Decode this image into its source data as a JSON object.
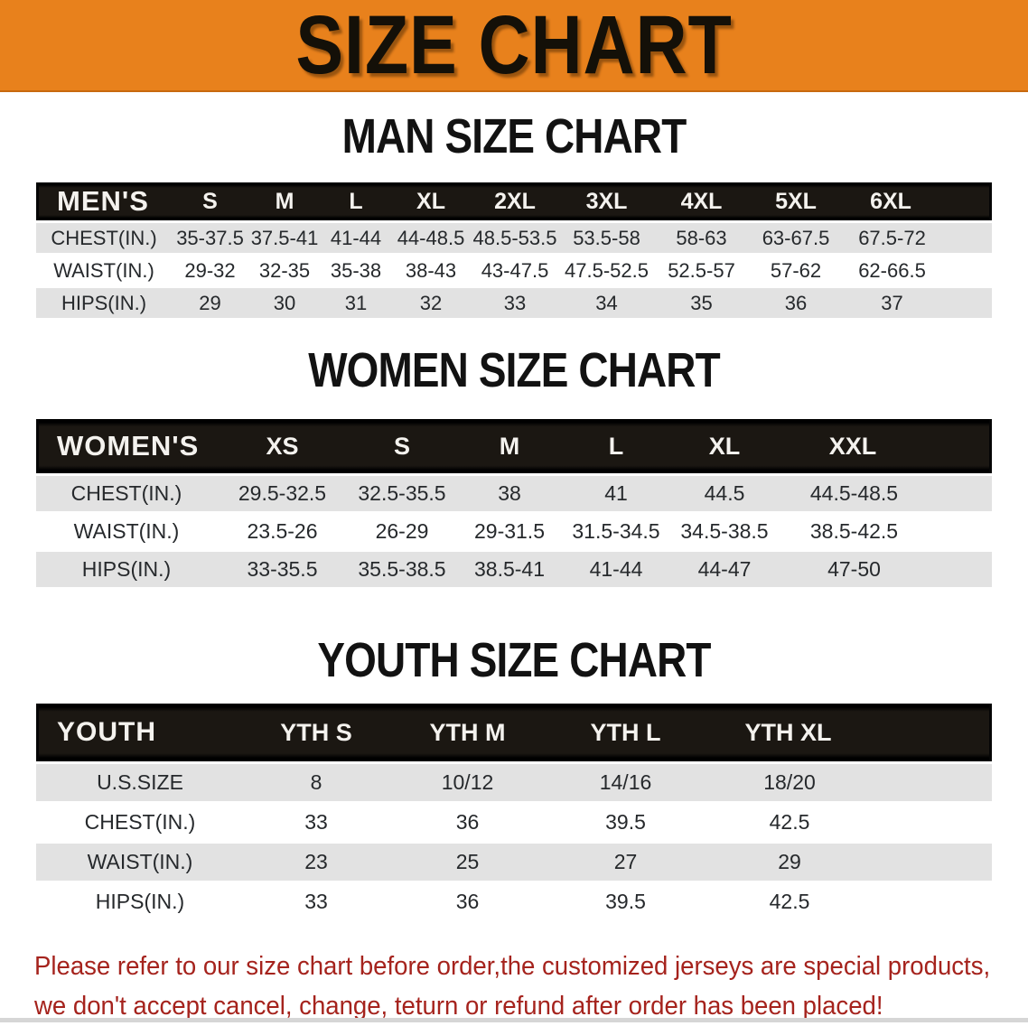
{
  "banner": {
    "title": "SIZE CHART",
    "bg_color": "#E8811C",
    "text_color": "#141008"
  },
  "sections": {
    "men": {
      "heading": "MAN SIZE CHART"
    },
    "women": {
      "heading": "WOMEN SIZE CHART"
    },
    "youth": {
      "heading": "YOUTH SIZE CHART"
    }
  },
  "tables": {
    "men": {
      "header_label": "MEN'S",
      "columns": [
        "S",
        "M",
        "L",
        "XL",
        "2XL",
        "3XL",
        "4XL",
        "5XL",
        "6XL"
      ],
      "rows": [
        {
          "label": "CHEST(IN.)",
          "values": [
            "35-37.5",
            "37.5-41",
            "41-44",
            "44-48.5",
            "48.5-53.5",
            "53.5-58",
            "58-63",
            "63-67.5",
            "67.5-72"
          ]
        },
        {
          "label": "WAIST(IN.)",
          "values": [
            "29-32",
            "32-35",
            "35-38",
            "38-43",
            "43-47.5",
            "47.5-52.5",
            "52.5-57",
            "57-62",
            "62-66.5"
          ]
        },
        {
          "label": "HIPS(IN.)",
          "values": [
            "29",
            "30",
            "31",
            "32",
            "33",
            "34",
            "35",
            "36",
            "37"
          ]
        }
      ]
    },
    "women": {
      "header_label": "WOMEN'S",
      "columns": [
        "XS",
        "S",
        "M",
        "L",
        "XL",
        "XXL"
      ],
      "rows": [
        {
          "label": "CHEST(IN.)",
          "values": [
            "29.5-32.5",
            "32.5-35.5",
            "38",
            "41",
            "44.5",
            "44.5-48.5"
          ]
        },
        {
          "label": "WAIST(IN.)",
          "values": [
            "23.5-26",
            "26-29",
            "29-31.5",
            "31.5-34.5",
            "34.5-38.5",
            "38.5-42.5"
          ]
        },
        {
          "label": "HIPS(IN.)",
          "values": [
            "33-35.5",
            "35.5-38.5",
            "38.5-41",
            "41-44",
            "44-47",
            "47-50"
          ]
        }
      ]
    },
    "youth": {
      "header_label": "YOUTH",
      "columns": [
        "YTH S",
        "YTH M",
        "YTH L",
        "YTH XL"
      ],
      "rows": [
        {
          "label": "U.S.SIZE",
          "values": [
            "8",
            "10/12",
            "14/16",
            "18/20"
          ]
        },
        {
          "label": "CHEST(IN.)",
          "values": [
            "33",
            "36",
            "39.5",
            "42.5"
          ]
        },
        {
          "label": "WAIST(IN.)",
          "values": [
            "23",
            "25",
            "27",
            "29"
          ]
        },
        {
          "label": "HIPS(IN.)",
          "values": [
            "33",
            "36",
            "39.5",
            "42.5"
          ]
        }
      ]
    }
  },
  "footer": {
    "line1": "Please refer to our size chart before order,the customized jerseys are special products,",
    "line2": "we don't accept cancel, change, teturn or refund after order has been placed!",
    "text_color": "#A5231D"
  }
}
